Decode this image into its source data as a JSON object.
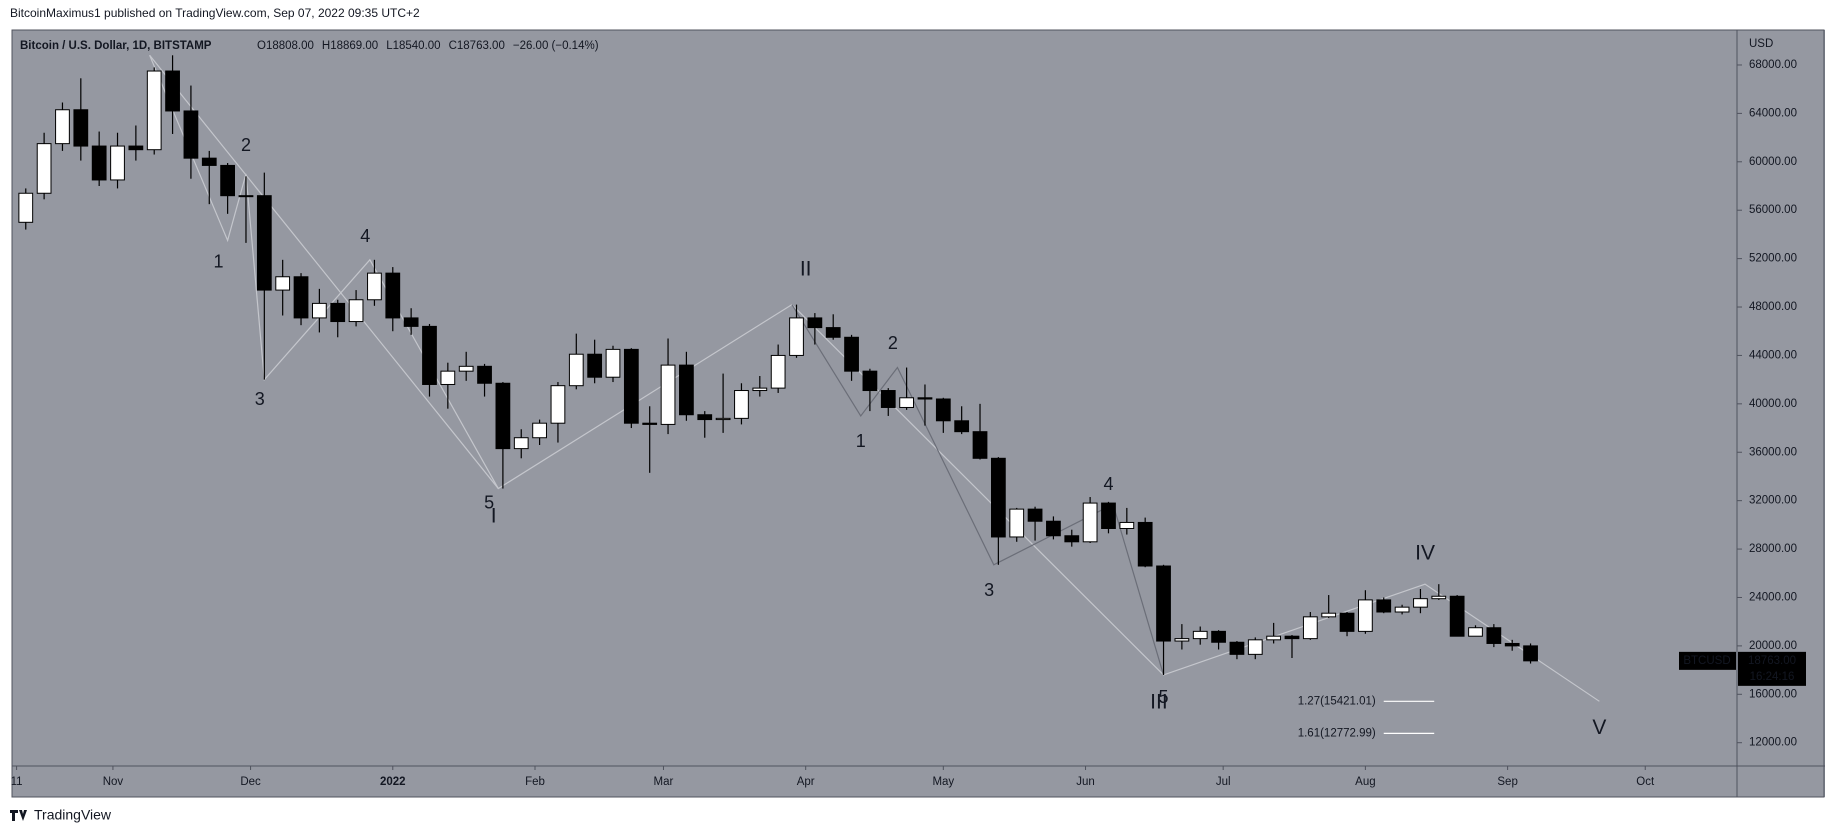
{
  "publisher": "BitcoinMaximus1 published on TradingView.com, Sep 07, 2022 09:35 UTC+2",
  "footer": "TradingView",
  "chart_data": {
    "type": "candlestick",
    "title": "Bitcoin / U.S. Dollar, 1D, BITSTAMP",
    "ohlc_text": [
      "O18808.00",
      "H18869.00",
      "L18540.00",
      "C18763.00",
      "−26.00 (−0.14%)"
    ],
    "y_unit": "USD",
    "x": [
      "2021-10-11",
      "2021-10-15",
      "2021-10-19",
      "2021-10-23",
      "2021-10-27",
      "2021-10-31",
      "2021-11-04",
      "2021-11-08",
      "2021-11-12",
      "2021-11-16",
      "2021-11-20",
      "2021-11-24",
      "2021-11-28",
      "2021-12-02",
      "2021-12-06",
      "2021-12-10",
      "2021-12-14",
      "2021-12-18",
      "2021-12-22",
      "2021-12-26",
      "2021-12-30",
      "2022-01-03",
      "2022-01-07",
      "2022-01-11",
      "2022-01-15",
      "2022-01-19",
      "2022-01-23",
      "2022-01-27",
      "2022-01-31",
      "2022-02-04",
      "2022-02-08",
      "2022-02-12",
      "2022-02-16",
      "2022-02-20",
      "2022-02-24",
      "2022-02-28",
      "2022-03-04",
      "2022-03-08",
      "2022-03-12",
      "2022-03-16",
      "2022-03-20",
      "2022-03-24",
      "2022-03-28",
      "2022-04-01",
      "2022-04-05",
      "2022-04-09",
      "2022-04-13",
      "2022-04-17",
      "2022-04-21",
      "2022-04-25",
      "2022-04-29",
      "2022-05-03",
      "2022-05-07",
      "2022-05-11",
      "2022-05-15",
      "2022-05-19",
      "2022-05-23",
      "2022-05-27",
      "2022-05-31",
      "2022-06-04",
      "2022-06-08",
      "2022-06-12",
      "2022-06-16",
      "2022-06-20",
      "2022-06-24",
      "2022-06-28",
      "2022-07-02",
      "2022-07-06",
      "2022-07-10",
      "2022-07-14",
      "2022-07-18",
      "2022-07-22",
      "2022-07-26",
      "2022-07-30",
      "2022-08-03",
      "2022-08-07",
      "2022-08-11",
      "2022-08-15",
      "2022-08-19",
      "2022-08-23",
      "2022-08-27",
      "2022-08-31",
      "2022-09-04"
    ],
    "open": [
      55000,
      57400,
      61500,
      64300,
      61300,
      58500,
      61300,
      61000,
      67500,
      64200,
      60300,
      59700,
      57200,
      57200,
      49400,
      50500,
      47100,
      48300,
      46800,
      48600,
      50800,
      47100,
      46400,
      41600,
      42700,
      43100,
      41700,
      36300,
      37200,
      38400,
      41500,
      44100,
      42200,
      44500,
      38400,
      38300,
      43200,
      39100,
      38700,
      38800,
      41100,
      41300,
      44000,
      47100,
      46300,
      45500,
      42700,
      41100,
      39700,
      40500,
      40400,
      38600,
      37700,
      35500,
      29000,
      31300,
      30300,
      29100,
      28600,
      31800,
      29700,
      30200,
      26600,
      20400,
      20600,
      21200,
      20300,
      19300,
      20500,
      20800,
      20600,
      22400,
      22700,
      21200,
      23800,
      22800,
      23200,
      23900,
      24100,
      20800,
      21500,
      20200,
      20000
    ],
    "high": [
      57800,
      62400,
      64900,
      66900,
      62500,
      62400,
      63000,
      67800,
      68800,
      66300,
      60900,
      59900,
      58800,
      59100,
      51900,
      50800,
      49500,
      48600,
      49400,
      51900,
      51300,
      47900,
      46600,
      43400,
      44300,
      43300,
      41800,
      37900,
      38700,
      41800,
      45800,
      45300,
      44800,
      44600,
      39800,
      45400,
      44300,
      39400,
      42500,
      41700,
      42300,
      44900,
      48200,
      47500,
      47400,
      45700,
      42900,
      41300,
      43000,
      41600,
      40500,
      39800,
      40000,
      35600,
      31400,
      31500,
      30700,
      29600,
      32300,
      31900,
      31400,
      30600,
      26700,
      21800,
      21600,
      21300,
      20400,
      20700,
      21900,
      20900,
      22800,
      24200,
      22800,
      24600,
      24000,
      23400,
      24700,
      25100,
      24200,
      21700,
      21800,
      20500,
      20200
    ],
    "low": [
      54400,
      56900,
      60900,
      60100,
      58000,
      57800,
      60100,
      60600,
      62300,
      58600,
      56500,
      55700,
      53300,
      42000,
      47300,
      46500,
      45900,
      45500,
      46400,
      48100,
      46000,
      45700,
      40600,
      39600,
      41900,
      40600,
      33000,
      35500,
      36600,
      36800,
      41200,
      41700,
      41800,
      38000,
      34300,
      37500,
      38600,
      37200,
      37600,
      38300,
      40600,
      40900,
      43800,
      44900,
      45300,
      41900,
      39400,
      39000,
      39500,
      38200,
      37600,
      37500,
      35400,
      26700,
      28600,
      28700,
      28800,
      28200,
      28500,
      29300,
      29200,
      26500,
      17600,
      19700,
      20100,
      19700,
      18900,
      18900,
      20200,
      19000,
      20500,
      22300,
      20800,
      21000,
      22700,
      22600,
      22700,
      23800,
      20800,
      20800,
      19900,
      19600,
      18540
    ],
    "close": [
      57400,
      61500,
      64300,
      61300,
      58500,
      61300,
      61000,
      67500,
      64200,
      60300,
      59700,
      57200,
      57200,
      49400,
      50500,
      47100,
      48300,
      46800,
      48600,
      50800,
      47100,
      46400,
      41600,
      42700,
      43100,
      41700,
      36300,
      37200,
      38400,
      41500,
      44100,
      42200,
      44500,
      38400,
      38300,
      43200,
      39100,
      38700,
      38800,
      41100,
      41300,
      44000,
      47100,
      46300,
      45500,
      42700,
      41100,
      39700,
      40500,
      40400,
      38600,
      37700,
      35500,
      29000,
      31300,
      30300,
      29100,
      28600,
      31800,
      29700,
      30200,
      26600,
      20400,
      20600,
      21200,
      20300,
      19300,
      20500,
      20800,
      20600,
      22400,
      22700,
      21200,
      23800,
      22800,
      23200,
      23900,
      24100,
      20800,
      21500,
      20200,
      20000,
      18763
    ],
    "up_color": "#ffffff",
    "down_color": "#000000",
    "background": "#9598a1",
    "xlim": [
      "2021-10-10",
      "2022-10-21"
    ],
    "xticks": [
      {
        "value": "2021-10-11",
        "label": "11"
      },
      {
        "value": "2021-11-01",
        "label": "Nov"
      },
      {
        "value": "2021-12-01",
        "label": "Dec"
      },
      {
        "value": "2022-01-01",
        "label": "2022"
      },
      {
        "value": "2022-02-01",
        "label": "Feb"
      },
      {
        "value": "2022-03-01",
        "label": "Mar"
      },
      {
        "value": "2022-04-01",
        "label": "Apr"
      },
      {
        "value": "2022-05-01",
        "label": "May"
      },
      {
        "value": "2022-06-01",
        "label": "Jun"
      },
      {
        "value": "2022-07-01",
        "label": "Jul"
      },
      {
        "value": "2022-08-01",
        "label": "Aug"
      },
      {
        "value": "2022-09-01",
        "label": "Sep"
      },
      {
        "value": "2022-10-01",
        "label": "Oct"
      }
    ],
    "ylim": [
      10075,
      70890
    ],
    "yticks": [
      {
        "value": 12000,
        "label": "12000.00"
      },
      {
        "value": 16000,
        "label": "16000.00"
      },
      {
        "value": 20000,
        "label": "20000.00"
      },
      {
        "value": 24000,
        "label": "24000.00"
      },
      {
        "value": 28000,
        "label": "28000.00"
      },
      {
        "value": 32000,
        "label": "32000.00"
      },
      {
        "value": 36000,
        "label": "36000.00"
      },
      {
        "value": 40000,
        "label": "40000.00"
      },
      {
        "value": 44000,
        "label": "44000.00"
      },
      {
        "value": 48000,
        "label": "48000.00"
      },
      {
        "value": 52000,
        "label": "52000.00"
      },
      {
        "value": 56000,
        "label": "56000.00"
      },
      {
        "value": 60000,
        "label": "60000.00"
      },
      {
        "value": 64000,
        "label": "64000.00"
      },
      {
        "value": 68000,
        "label": "68000.00"
      }
    ],
    "wave_lines": [
      {
        "color": "#c4c6cc",
        "x": [
          "2021-11-09",
          "2022-01-24",
          "2022-03-29",
          "2022-06-18",
          "2022-08-14",
          "2022-09-21"
        ],
        "y": [
          68800,
          33000,
          48200,
          17600,
          25100,
          15420
        ]
      },
      {
        "color": "#c4c6cc",
        "x": [
          "2021-11-09",
          "2021-11-26",
          "2021-11-30",
          "2021-12-04",
          "2021-12-27",
          "2022-01-24"
        ],
        "y": [
          68800,
          53500,
          59000,
          42000,
          51900,
          33000
        ]
      },
      {
        "color": "#6b6e78",
        "x": [
          "2022-03-29",
          "2022-04-13",
          "2022-04-21",
          "2022-05-12",
          "2022-06-07",
          "2022-06-18"
        ],
        "y": [
          48200,
          39000,
          43000,
          26700,
          31700,
          17600
        ]
      }
    ],
    "wave_labels": [
      {
        "text": "1",
        "x": "2021-11-24",
        "y": 51650,
        "color": "#000000"
      },
      {
        "text": "2",
        "x": "2021-11-30",
        "y": 61270,
        "color": "#000000"
      },
      {
        "text": "3",
        "x": "2021-12-03",
        "y": 40300,
        "color": "#000000"
      },
      {
        "text": "4",
        "x": "2021-12-26",
        "y": 53760,
        "color": "#000000"
      },
      {
        "text": "5",
        "x": "2022-01-22",
        "y": 31730,
        "color": "#000000"
      },
      {
        "text": "I",
        "x": "2022-01-23",
        "y": 30670,
        "color": "#ffffff"
      },
      {
        "text": "II",
        "x": "2022-04-01",
        "y": 51070,
        "color": "#ffffff"
      },
      {
        "text": "1",
        "x": "2022-04-13",
        "y": 36830,
        "color": "#000000"
      },
      {
        "text": "2",
        "x": "2022-04-20",
        "y": 44910,
        "color": "#000000"
      },
      {
        "text": "3",
        "x": "2022-05-11",
        "y": 24520,
        "color": "#000000"
      },
      {
        "text": "4",
        "x": "2022-06-06",
        "y": 33270,
        "color": "#000000"
      },
      {
        "text": "5",
        "x": "2022-06-18",
        "y": 15670,
        "color": "#000000"
      },
      {
        "text": "III",
        "x": "2022-06-17",
        "y": 15280,
        "color": "#ffffff"
      },
      {
        "text": "IV",
        "x": "2022-08-14",
        "y": 27600,
        "color": "#ffffff"
      },
      {
        "text": "V",
        "x": "2022-09-21",
        "y": 13170,
        "color": "#ffffff"
      }
    ],
    "fib_levels": [
      {
        "label": "1.27(15421.01)",
        "value": 15421.01
      },
      {
        "label": "1.61(12772.99)",
        "value": 12772.99
      }
    ],
    "price_tag": {
      "symbol": "BTCUSD",
      "price": "18763.00",
      "countdown": "16:24:16"
    }
  }
}
